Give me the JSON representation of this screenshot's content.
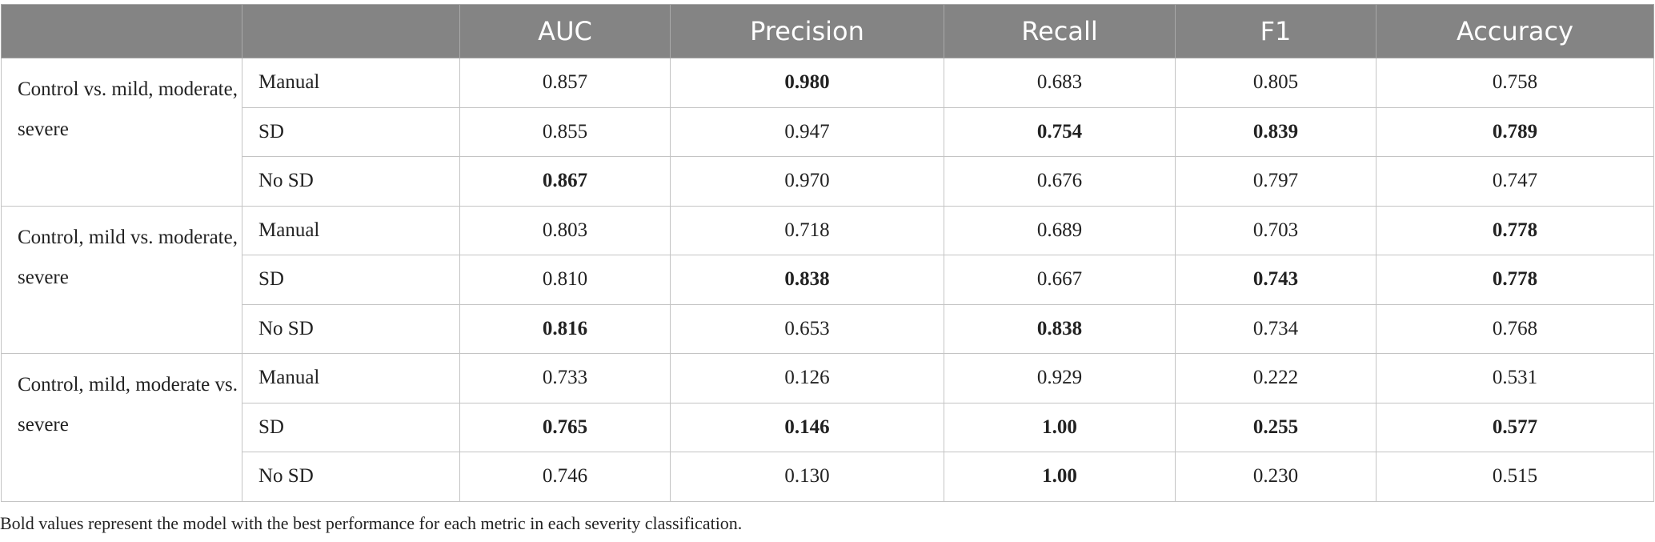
{
  "header": {
    "corner": "",
    "columns": [
      "AUC",
      "Precision",
      "Recall",
      "F1",
      "Accuracy"
    ]
  },
  "groups": [
    {
      "label": "Control vs. mild, moderate, severe",
      "rows": [
        {
          "model": "Manual",
          "values": [
            "0.857",
            "0.980",
            "0.683",
            "0.805",
            "0.758"
          ],
          "bold": [
            false,
            true,
            false,
            false,
            false
          ]
        },
        {
          "model": "SD",
          "values": [
            "0.855",
            "0.947",
            "0.754",
            "0.839",
            "0.789"
          ],
          "bold": [
            false,
            false,
            true,
            true,
            true
          ]
        },
        {
          "model": "No SD",
          "values": [
            "0.867",
            "0.970",
            "0.676",
            "0.797",
            "0.747"
          ],
          "bold": [
            true,
            false,
            false,
            false,
            false
          ]
        }
      ]
    },
    {
      "label": "Control, mild vs. moderate, severe",
      "rows": [
        {
          "model": "Manual",
          "values": [
            "0.803",
            "0.718",
            "0.689",
            "0.703",
            "0.778"
          ],
          "bold": [
            false,
            false,
            false,
            false,
            true
          ]
        },
        {
          "model": "SD",
          "values": [
            "0.810",
            "0.838",
            "0.667",
            "0.743",
            "0.778"
          ],
          "bold": [
            false,
            true,
            false,
            true,
            true
          ]
        },
        {
          "model": "No SD",
          "values": [
            "0.816",
            "0.653",
            "0.838",
            "0.734",
            "0.768"
          ],
          "bold": [
            true,
            false,
            true,
            false,
            false
          ]
        }
      ]
    },
    {
      "label": "Control, mild, moderate vs. severe",
      "rows": [
        {
          "model": "Manual",
          "values": [
            "0.733",
            "0.126",
            "0.929",
            "0.222",
            "0.531"
          ],
          "bold": [
            false,
            false,
            false,
            false,
            false
          ]
        },
        {
          "model": "SD",
          "values": [
            "0.765",
            "0.146",
            "1.00",
            "0.255",
            "0.577"
          ],
          "bold": [
            true,
            true,
            true,
            true,
            true
          ]
        },
        {
          "model": "No SD",
          "values": [
            "0.746",
            "0.130",
            "1.00",
            "0.230",
            "0.515"
          ],
          "bold": [
            false,
            false,
            true,
            false,
            false
          ]
        }
      ]
    }
  ],
  "footnote": "Bold values represent the model with the best performance for each metric in each severity classification."
}
